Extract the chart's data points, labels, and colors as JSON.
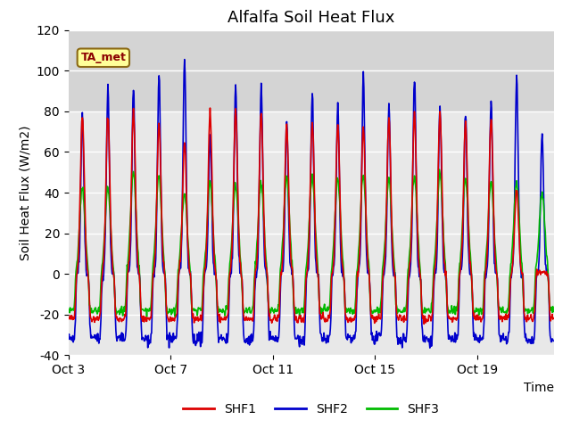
{
  "title": "Alfalfa Soil Heat Flux",
  "ylabel": "Soil Heat Flux (W/m2)",
  "xlabel": "Time",
  "ylim": [
    -40,
    120
  ],
  "xtick_labels": [
    "Oct 3",
    "Oct 7",
    "Oct 11",
    "Oct 15",
    "Oct 19"
  ],
  "tick_day_offsets": [
    0,
    4,
    8,
    12,
    16
  ],
  "line_colors": {
    "SHF1": "#dd0000",
    "SHF2": "#0000cc",
    "SHF3": "#00bb00"
  },
  "line_widths": {
    "SHF1": 1.2,
    "SHF2": 1.2,
    "SHF3": 1.2
  },
  "annotation_text": "TA_met",
  "annotation_color": "#8b0000",
  "annotation_bg": "#ffff99",
  "annotation_border": "#8b6914",
  "plot_bg": "#e8e8e8",
  "upper_band_bg": "#d4d4d4",
  "figure_bg": "#ffffff",
  "grid_color": "#ffffff",
  "title_fontsize": 13,
  "axis_fontsize": 10,
  "legend_fontsize": 10,
  "n_days": 19,
  "dt_hours": 0.5,
  "yticks": [
    -40,
    -20,
    0,
    20,
    40,
    60,
    80,
    100,
    120
  ],
  "shf1_peaks": [
    78,
    78,
    80,
    75,
    65,
    80,
    80,
    79,
    73,
    75,
    74,
    72,
    76,
    78,
    79,
    75,
    77,
    42,
    0
  ],
  "shf2_peaks": [
    79,
    91,
    91,
    98,
    105,
    70,
    93,
    92,
    75,
    89,
    82,
    97,
    84,
    98,
    83,
    79,
    84,
    97,
    70
  ],
  "shf3_peaks": [
    42,
    42,
    50,
    48,
    40,
    45,
    44,
    45,
    48,
    48,
    47,
    49,
    47,
    48,
    49,
    47,
    45,
    45,
    40
  ],
  "shf1_night": -22,
  "shf2_night": -32,
  "shf3_night": -18
}
